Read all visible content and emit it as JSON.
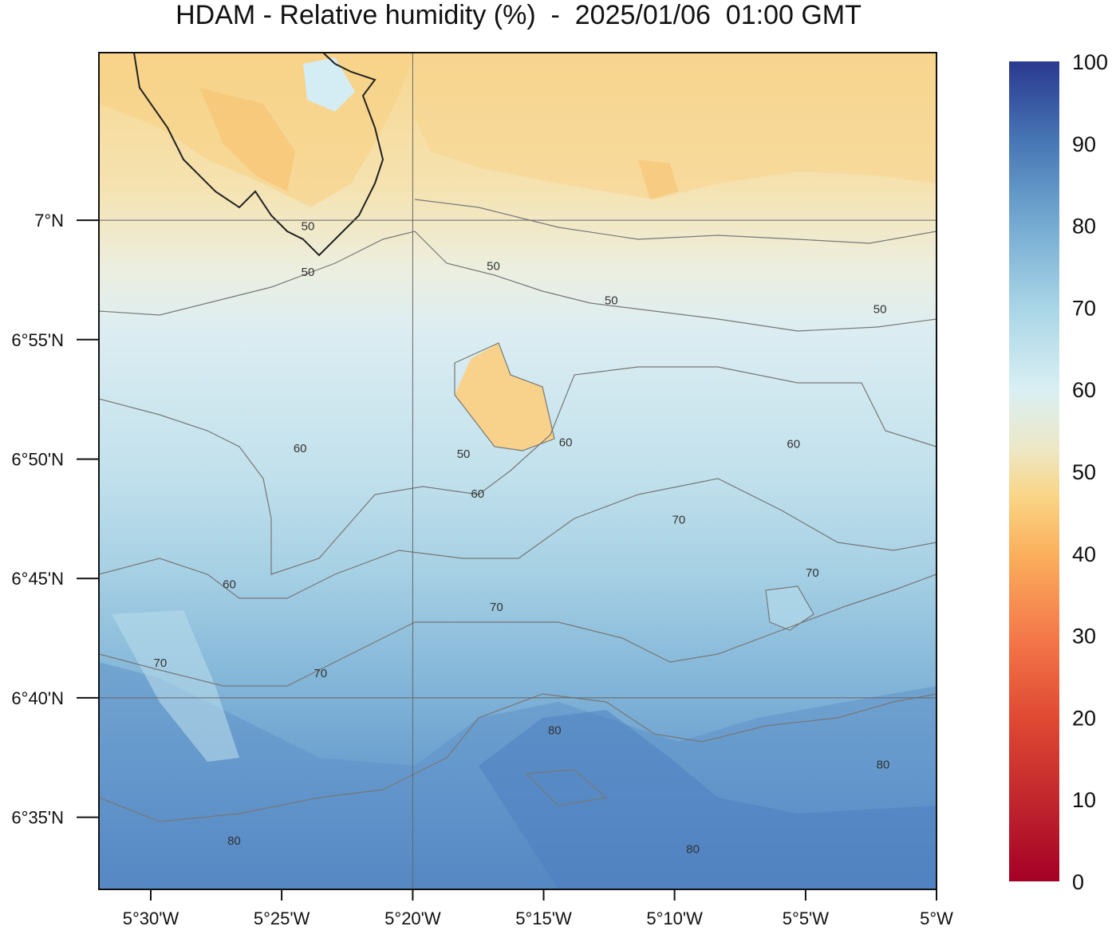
{
  "title": "HDAM - Relative humidity (%)  -  2025/01/06  01:00 GMT",
  "map": {
    "lon_range": [
      -5.533,
      -5.0
    ],
    "lat_range": [
      6.533,
      7.117
    ],
    "x_ticks": [
      {
        "value": -5.5,
        "label": "5°30'W"
      },
      {
        "value": -5.4167,
        "label": "5°25'W"
      },
      {
        "value": -5.3333,
        "label": "5°20'W"
      },
      {
        "value": -5.25,
        "label": "5°15'W"
      },
      {
        "value": -5.1667,
        "label": "5°10'W"
      },
      {
        "value": -5.0833,
        "label": "5°5'W"
      },
      {
        "value": -5.0,
        "label": "5°W"
      }
    ],
    "y_ticks": [
      {
        "value": 7.0,
        "label": "7°N"
      },
      {
        "value": 6.9167,
        "label": "6°55'N"
      },
      {
        "value": 6.8333,
        "label": "6°50'N"
      },
      {
        "value": 6.75,
        "label": "6°45'N"
      },
      {
        "value": 6.6667,
        "label": "6°40'N"
      },
      {
        "value": 6.5833,
        "label": "6°35'N"
      }
    ],
    "gridlines": {
      "lon": [
        -5.3333
      ],
      "lat": [
        7.0,
        6.6667
      ]
    },
    "contour_labels": [
      {
        "text": "50",
        "lon": -5.4,
        "lat": 6.996
      },
      {
        "text": "50",
        "lon": -5.4,
        "lat": 6.964
      },
      {
        "text": "50",
        "lon": -5.282,
        "lat": 6.968
      },
      {
        "text": "50",
        "lon": -5.207,
        "lat": 6.944
      },
      {
        "text": "50",
        "lon": -5.036,
        "lat": 6.938
      },
      {
        "text": "50",
        "lon": -5.301,
        "lat": 6.837
      },
      {
        "text": "60",
        "lon": -5.405,
        "lat": 6.841
      },
      {
        "text": "60",
        "lon": -5.236,
        "lat": 6.845
      },
      {
        "text": "60",
        "lon": -5.091,
        "lat": 6.844
      },
      {
        "text": "60",
        "lon": -5.292,
        "lat": 6.809
      },
      {
        "text": "60",
        "lon": -5.45,
        "lat": 6.746
      },
      {
        "text": "70",
        "lon": -5.164,
        "lat": 6.791
      },
      {
        "text": "70",
        "lon": -5.079,
        "lat": 6.754
      },
      {
        "text": "70",
        "lon": -5.28,
        "lat": 6.73
      },
      {
        "text": "70",
        "lon": -5.494,
        "lat": 6.691
      },
      {
        "text": "70",
        "lon": -5.392,
        "lat": 6.684
      },
      {
        "text": "80",
        "lon": -5.243,
        "lat": 6.644
      },
      {
        "text": "80",
        "lon": -5.034,
        "lat": 6.62
      },
      {
        "text": "80",
        "lon": -5.447,
        "lat": 6.567
      },
      {
        "text": "80",
        "lon": -5.155,
        "lat": 6.561
      }
    ]
  },
  "colorbar": {
    "min": 0,
    "max": 100,
    "labels": [
      "0",
      "10",
      "20",
      "30",
      "40",
      "50",
      "60",
      "70",
      "80",
      "90",
      "100"
    ],
    "stops": [
      "#a50026",
      "#d73027",
      "#f46d43",
      "#fdae61",
      "#fed384",
      "#f2e6c0",
      "#e0f3f8",
      "#abd9e9",
      "#74add1",
      "#4575b4",
      "#313695"
    ]
  }
}
